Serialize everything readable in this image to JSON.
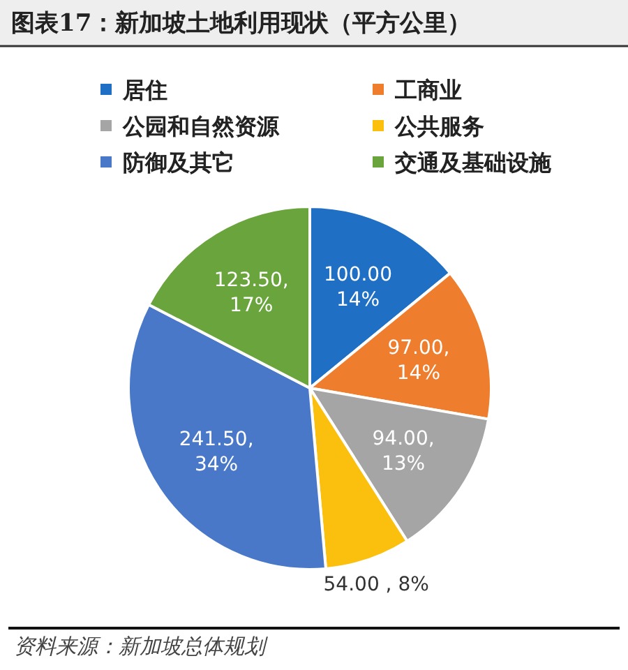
{
  "chart_data": {
    "type": "pie",
    "title": "图表17：新加坡土地利用现状（平方公里）",
    "categories": [
      "居住",
      "工商业",
      "公园和自然资源",
      "公共服务",
      "防御及其它",
      "交通及基础设施"
    ],
    "values": [
      100.0,
      97.0,
      94.0,
      54.0,
      241.5,
      123.5
    ],
    "colors": [
      "#1f6fc5",
      "#ee7d2d",
      "#a5a5a5",
      "#fbc00e",
      "#4a78c8",
      "#6aa43c"
    ],
    "value_labels": [
      "100.00\n14%",
      "97.00,\n14%",
      "94.00,\n13%",
      "54.00 , 8%",
      "241.50,\n34%",
      "123.50,\n17%"
    ],
    "legend": "top",
    "annotations": [
      "资料来源：新加坡总体规划"
    ]
  }
}
